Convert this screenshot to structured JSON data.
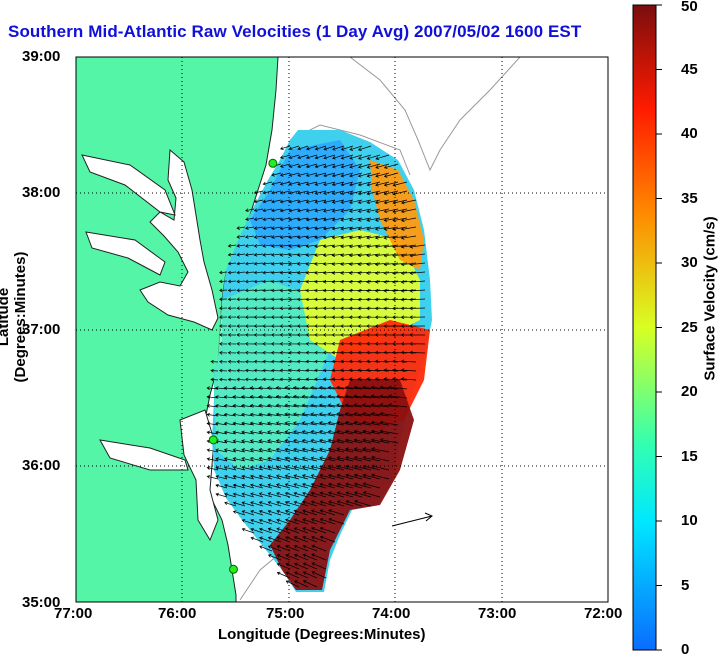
{
  "title": "Southern Mid-Atlantic Raw Velocities (1 Day Avg) 2007/05/02 1600 EST",
  "chart_data": {
    "type": "map",
    "xlabel": "Longitude (Degrees:Minutes)",
    "ylabel": "Latitude (Degrees:Minutes)",
    "x_ticks": [
      "77:00",
      "76:00",
      "75:00",
      "74:00",
      "73:00",
      "72:00"
    ],
    "y_ticks": [
      "39:00",
      "38:00",
      "37:00",
      "36:00",
      "35:00"
    ],
    "xlim": [
      -77,
      -72
    ],
    "ylim": [
      35,
      39
    ],
    "grid": true,
    "colorbar": {
      "label": "Surface Velocity (cm/s)",
      "range": [
        0,
        50
      ],
      "ticks": [
        "0",
        "5",
        "10",
        "15",
        "20",
        "25",
        "30",
        "35",
        "40",
        "45",
        "50"
      ],
      "colors": [
        "#0a6cff",
        "#00e8ff",
        "#33ffb0",
        "#d8ff22",
        "#ff8800",
        "#ff1a00",
        "#7a0e0e"
      ]
    },
    "land_color": "#55f5a8",
    "stations": [
      {
        "lon": -75.15,
        "lat": 38.22
      },
      {
        "lon": -75.71,
        "lat": 36.19
      },
      {
        "lon": -75.52,
        "lat": 35.24
      }
    ]
  }
}
